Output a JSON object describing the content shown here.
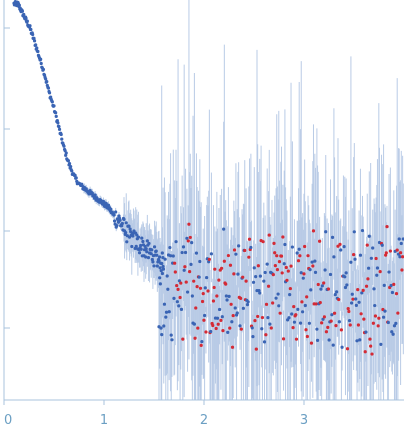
{
  "chart_data": {
    "type": "scatter",
    "title": "",
    "xlabel": "",
    "ylabel": "",
    "xlim": [
      0,
      4.0
    ],
    "y_log_scale": true,
    "y_tick_labels_shown": false,
    "x_ticks": [
      {
        "value": 0,
        "label": "0"
      },
      {
        "value": 1,
        "label": "1"
      },
      {
        "value": 2,
        "label": "2"
      },
      {
        "value": 3,
        "label": "3"
      }
    ],
    "colors": {
      "positive_points": "#3a64b4",
      "negative_points": "#d42a35",
      "error_bars": "#b9cbe6",
      "axis": "#a9c3dd",
      "tick_labels": "#6b9fc3"
    },
    "series": [
      {
        "marker_color": "#3a64b4",
        "points_smooth": [
          [
            0.1,
            0.99
          ],
          [
            0.14,
            0.99
          ],
          [
            0.18,
            0.97
          ],
          [
            0.22,
            0.95
          ],
          [
            0.26,
            0.93
          ],
          [
            0.3,
            0.9
          ],
          [
            0.35,
            0.86
          ],
          [
            0.4,
            0.82
          ],
          [
            0.45,
            0.77
          ],
          [
            0.5,
            0.73
          ],
          [
            0.55,
            0.68
          ],
          [
            0.6,
            0.63
          ],
          [
            0.65,
            0.59
          ],
          [
            0.7,
            0.56
          ],
          [
            0.75,
            0.54
          ],
          [
            0.8,
            0.53
          ],
          [
            0.85,
            0.52
          ],
          [
            0.9,
            0.51
          ],
          [
            0.95,
            0.5
          ],
          [
            1.0,
            0.49
          ],
          [
            1.05,
            0.48
          ],
          [
            1.1,
            0.46
          ],
          [
            1.15,
            0.45
          ],
          [
            1.2,
            0.43
          ],
          [
            1.25,
            0.41
          ],
          [
            1.3,
            0.4
          ],
          [
            1.35,
            0.39
          ],
          [
            1.4,
            0.38
          ],
          [
            1.45,
            0.37
          ],
          [
            1.5,
            0.36
          ],
          [
            1.55,
            0.35
          ],
          [
            1.6,
            0.34
          ]
        ],
        "noisy_region": {
          "x_start": 1.55,
          "x_end": 4.0,
          "level": 0.27,
          "spread": 0.08,
          "point_count": 360
        }
      }
    ]
  }
}
